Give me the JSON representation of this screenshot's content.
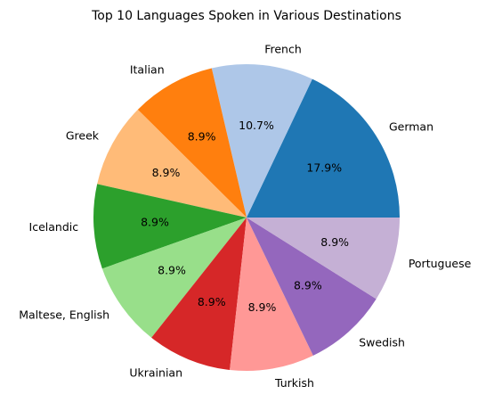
{
  "chart_data": {
    "type": "pie",
    "title": "Top 10 Languages Spoken in Various Destinations",
    "categories": [
      "German",
      "French",
      "Italian",
      "Greek",
      "Icelandic",
      "Maltese, English",
      "Ukrainian",
      "Turkish",
      "Swedish",
      "Portuguese"
    ],
    "values": [
      17.9,
      10.7,
      8.9,
      8.9,
      8.9,
      8.9,
      8.9,
      8.9,
      8.9,
      8.9
    ],
    "value_labels": [
      "17.9%",
      "10.7%",
      "8.9%",
      "8.9%",
      "8.9%",
      "8.9%",
      "8.9%",
      "8.9%",
      "8.9%",
      "8.9%"
    ],
    "colors": [
      "#1f77b4",
      "#aec7e8",
      "#ff7f0e",
      "#ffbb78",
      "#2ca02c",
      "#98df8a",
      "#d62728",
      "#ff9896",
      "#9467bd",
      "#c5b0d5"
    ],
    "start_angle_deg": 0,
    "direction": "counterclockwise",
    "legend": "none"
  }
}
